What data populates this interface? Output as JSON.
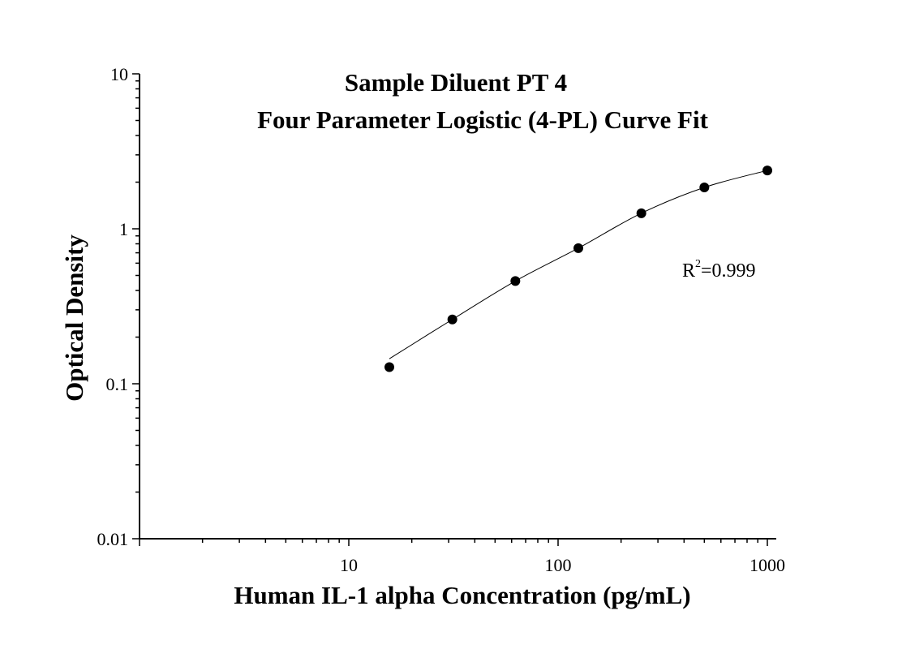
{
  "chart_data": {
    "type": "scatter",
    "title": "Sample Diluent PT 4",
    "subtitle": "Four Parameter Logistic (4-PL) Curve Fit",
    "xlabel": "Human IL-1 alpha Concentration (pg/mL)",
    "ylabel": "Optical Density",
    "x_scale": "log",
    "y_scale": "log",
    "xlim": [
      1,
      1000
    ],
    "ylim": [
      0.01,
      10
    ],
    "x_tick_labels": [
      "10",
      "100",
      "1000"
    ],
    "y_tick_labels": [
      "0.01",
      "0.1",
      "1",
      "10"
    ],
    "grid": false,
    "r2": {
      "prefix": "R",
      "superscript": "2",
      "value_text": "=0.999"
    },
    "series": [
      {
        "x": [
          15.625,
          31.25,
          62.5,
          125,
          250,
          500,
          1000
        ],
        "y": [
          0.128,
          0.26,
          0.46,
          0.75,
          1.26,
          1.85,
          2.38
        ]
      }
    ],
    "fit_curve": {
      "model": "4-PL",
      "x_range": [
        15.625,
        1000
      ]
    }
  }
}
